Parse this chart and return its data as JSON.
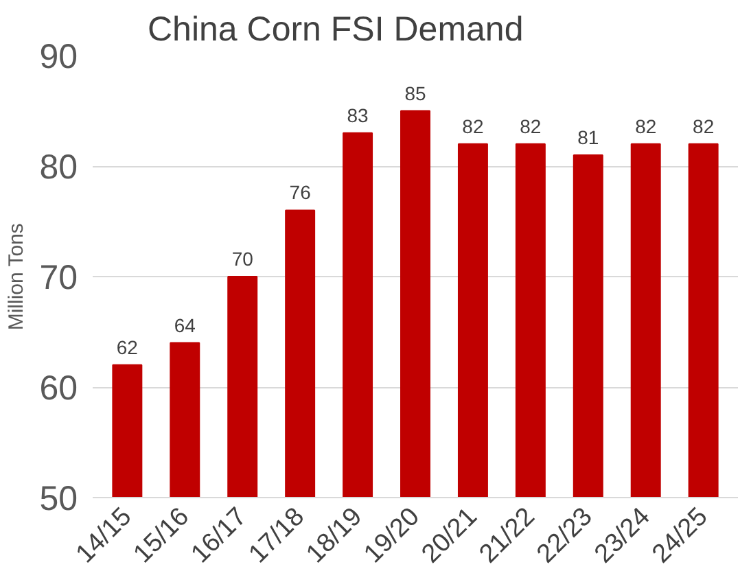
{
  "chart_data": {
    "type": "bar",
    "title": "China Corn FSI Demand",
    "ylabel": "Million Tons",
    "categories": [
      "14/15",
      "15/16",
      "16/17",
      "17/18",
      "18/19",
      "19/20",
      "20/21",
      "21/22",
      "22/23",
      "23/24",
      "24/25"
    ],
    "values": [
      62,
      64,
      70,
      76,
      83,
      85,
      82,
      82,
      81,
      82,
      82
    ],
    "color": "#c00000",
    "ylim": [
      50,
      90
    ],
    "yticks": [
      50,
      60,
      70,
      80,
      90
    ],
    "grid": "y",
    "data_labels": true
  }
}
